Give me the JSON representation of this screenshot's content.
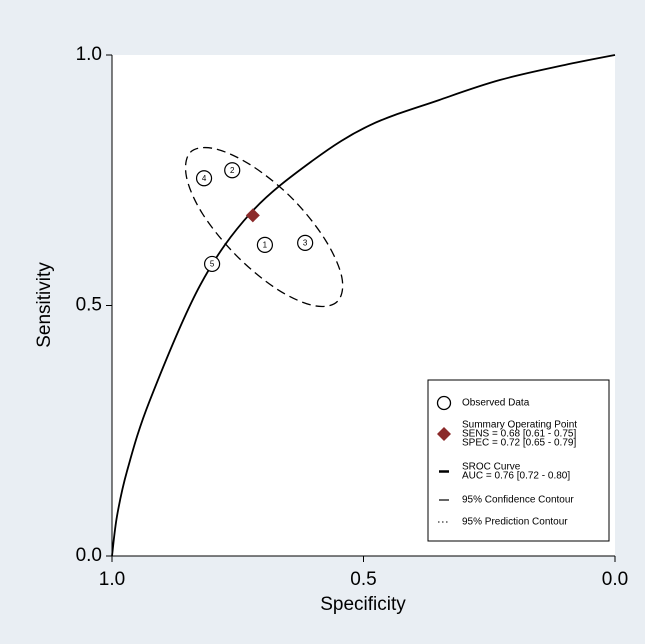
{
  "chart_data": {
    "type": "sroc",
    "xlabel": "Specificity",
    "ylabel": "Sensitivity",
    "xlim": [
      1,
      0
    ],
    "ylim": [
      0,
      1
    ],
    "xticks": [
      {
        "value": 1,
        "label": "1.0"
      },
      {
        "value": 0.5,
        "label": "0.5"
      },
      {
        "value": 0,
        "label": "0.0"
      }
    ],
    "yticks": [
      {
        "value": 0,
        "label": "0.0"
      },
      {
        "value": 0.5,
        "label": "0.5"
      },
      {
        "value": 1,
        "label": "1.0"
      }
    ],
    "series": [
      {
        "name": "Observed Data",
        "kind": "points",
        "color": "#000000",
        "x": [
          0.696,
          0.761,
          0.616,
          0.817,
          0.801
        ],
        "y": [
          0.621,
          0.77,
          0.625,
          0.754,
          0.583
        ],
        "labels": [
          "1",
          "2",
          "3",
          "4",
          "5"
        ]
      },
      {
        "name": "Summary Operating Point",
        "kind": "summary",
        "color": "#8b2a2a",
        "x": [
          0.72
        ],
        "y": [
          0.68
        ],
        "details": [
          "SENS = 0.68 [0.61 - 0.75]",
          "SPEC = 0.72 [0.65 - 0.79]"
        ]
      },
      {
        "name": "SROC Curve",
        "kind": "curve",
        "color": "#000000",
        "x": [
          1,
          0.99,
          0.97,
          0.925,
          0.825,
          0.724,
          0.6,
          0.487,
          0.35,
          0.229,
          0.1,
          0
        ],
        "y": [
          0,
          0.08,
          0.17,
          0.31,
          0.54,
          0.685,
          0.79,
          0.86,
          0.91,
          0.95,
          0.98,
          1
        ],
        "details": [
          "AUC = 0.76 [0.72 - 0.80]"
        ]
      },
      {
        "name": "95% Confidence Contour",
        "kind": "contour",
        "color": "#000000",
        "x": [
          0.552,
          0.6,
          0.674,
          0.754,
          0.82,
          0.852,
          0.844,
          0.796,
          0.722,
          0.641,
          0.576,
          0.543
        ],
        "y": [
          0.508,
          0.5,
          0.534,
          0.601,
          0.683,
          0.757,
          0.806,
          0.813,
          0.779,
          0.713,
          0.631,
          0.556
        ]
      },
      {
        "name": "95% Prediction Contour",
        "kind": "prediction",
        "color": "#000000"
      }
    ]
  }
}
